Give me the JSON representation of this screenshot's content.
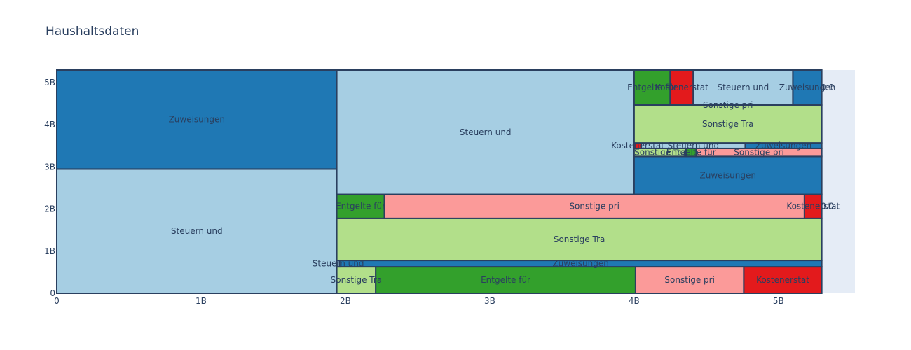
{
  "chart_data": {
    "type": "treemap",
    "title": "Haushaltsdaten",
    "xlabel": "",
    "ylabel": "",
    "xlim": [
      0,
      5.53
    ],
    "ylim": [
      0,
      5.3
    ],
    "x_ticks": [
      {
        "value": 0,
        "label": "0"
      },
      {
        "value": 1,
        "label": "1B"
      },
      {
        "value": 2,
        "label": "2B"
      },
      {
        "value": 3,
        "label": "3B"
      },
      {
        "value": 4,
        "label": "4B"
      },
      {
        "value": 5,
        "label": "5B"
      }
    ],
    "y_ticks": [
      {
        "value": 0,
        "label": "0"
      },
      {
        "value": 1,
        "label": "1B"
      },
      {
        "value": 2,
        "label": "2B"
      },
      {
        "value": 3,
        "label": "3B"
      },
      {
        "value": 4,
        "label": "4B"
      },
      {
        "value": 5,
        "label": "5B"
      }
    ],
    "colors": {
      "Steuern und": "#a6cee3",
      "Zuweisungen": "#1f78b4",
      "Sonstige Tra": "#b2df8a",
      "Entgelte für": "#33a02c",
      "Sonstige pri": "#fb9a99",
      "Kostenerstat": "#e31a1c",
      "background": "#e5ecf6",
      "border": "#2a3f5f"
    },
    "cells": [
      {
        "label": "Steuern und",
        "category": "Steuern und",
        "x0": 0,
        "x1": 1.94,
        "y0": 0,
        "y1": 2.95
      },
      {
        "label": "Zuweisungen",
        "category": "Zuweisungen",
        "x0": 0,
        "x1": 1.94,
        "y0": 2.95,
        "y1": 5.3
      },
      {
        "label": "Sonstige Tra",
        "category": "Sonstige Tra",
        "x0": 1.94,
        "x1": 2.21,
        "y0": 0,
        "y1": 0.63
      },
      {
        "label": "Entgelte für",
        "category": "Entgelte für",
        "x0": 2.21,
        "x1": 4.01,
        "y0": 0,
        "y1": 0.63
      },
      {
        "label": "Sonstige pri",
        "category": "Sonstige pri",
        "x0": 4.01,
        "x1": 4.76,
        "y0": 0,
        "y1": 0.63
      },
      {
        "label": "Kostenerstat",
        "category": "Kostenerstat",
        "x0": 4.76,
        "x1": 5.3,
        "y0": 0,
        "y1": 0.63
      },
      {
        "label": "Steuern und",
        "category": "Steuern und",
        "x0": 1.94,
        "x1": 1.96,
        "y0": 0.63,
        "y1": 0.78
      },
      {
        "label": "Zuweisungen",
        "category": "Zuweisungen",
        "x0": 1.96,
        "x1": 5.3,
        "y0": 0.63,
        "y1": 0.78
      },
      {
        "label": "Sonstige Tra",
        "category": "Sonstige Tra",
        "x0": 1.94,
        "x1": 5.3,
        "y0": 0.78,
        "y1": 1.78
      },
      {
        "label": "Entgelte für",
        "category": "Entgelte für",
        "x0": 1.94,
        "x1": 2.27,
        "y0": 1.78,
        "y1": 2.35
      },
      {
        "label": "Sonstige pri",
        "category": "Sonstige pri",
        "x0": 2.27,
        "x1": 5.18,
        "y0": 1.78,
        "y1": 2.35
      },
      {
        "label": "Kostenerstat",
        "category": "Kostenerstat",
        "x0": 5.18,
        "x1": 5.3,
        "y0": 1.78,
        "y1": 2.35
      },
      {
        "label": "0.0",
        "category": "Zuweisungen",
        "x0": 5.3,
        "x1": 5.3,
        "y0": 1.78,
        "y1": 2.35
      },
      {
        "label": "Steuern und",
        "category": "Steuern und",
        "x0": 1.94,
        "x1": 4.0,
        "y0": 2.35,
        "y1": 5.3
      },
      {
        "label": "Zuweisungen",
        "category": "Zuweisungen",
        "x0": 4.0,
        "x1": 5.3,
        "y0": 2.35,
        "y1": 3.25
      },
      {
        "label": "Sonstige Tra",
        "category": "Sonstige Tra",
        "x0": 4.0,
        "x1": 4.36,
        "y0": 3.25,
        "y1": 3.44
      },
      {
        "label": "Entgelte für",
        "category": "Entgelte für",
        "x0": 4.36,
        "x1": 4.43,
        "y0": 3.25,
        "y1": 3.44
      },
      {
        "label": "Sonstige pri",
        "category": "Sonstige pri",
        "x0": 4.43,
        "x1": 5.3,
        "y0": 3.25,
        "y1": 3.44
      },
      {
        "label": "Kostenerstat",
        "category": "Kostenerstat",
        "x0": 4.0,
        "x1": 4.05,
        "y0": 3.44,
        "y1": 3.57
      },
      {
        "label": "Steuern und",
        "category": "Steuern und",
        "x0": 4.05,
        "x1": 4.77,
        "y0": 3.44,
        "y1": 3.57
      },
      {
        "label": "Zuweisungen",
        "category": "Zuweisungen",
        "x0": 4.77,
        "x1": 5.3,
        "y0": 3.44,
        "y1": 3.57
      },
      {
        "label": "Sonstige Tra",
        "category": "Sonstige Tra",
        "x0": 4.0,
        "x1": 5.3,
        "y0": 3.57,
        "y1": 4.47
      },
      {
        "label": "Entgelte für",
        "category": "Entgelte für",
        "x0": 4.0,
        "x1": 4.25,
        "y0": 4.47,
        "y1": 5.3
      },
      {
        "label": "Kostenerstat",
        "category": "Kostenerstat",
        "x0": 4.25,
        "x1": 4.41,
        "y0": 4.47,
        "y1": 5.3
      },
      {
        "label": "Steuern und",
        "category": "Steuern und",
        "x0": 4.41,
        "x1": 5.1,
        "y0": 4.47,
        "y1": 5.3
      },
      {
        "label": "Zuweisungen",
        "category": "Zuweisungen",
        "x0": 5.1,
        "x1": 5.3,
        "y0": 4.47,
        "y1": 5.3
      },
      {
        "label": "0.0",
        "category": "Zuweisungen",
        "x0": 5.3,
        "x1": 5.3,
        "y0": 4.47,
        "y1": 5.3
      },
      {
        "label": "Sonstige pri",
        "category": "Sonstige pri",
        "x0": 4.0,
        "x1": 5.3,
        "y0": 4.47,
        "y1": 4.47
      }
    ]
  }
}
